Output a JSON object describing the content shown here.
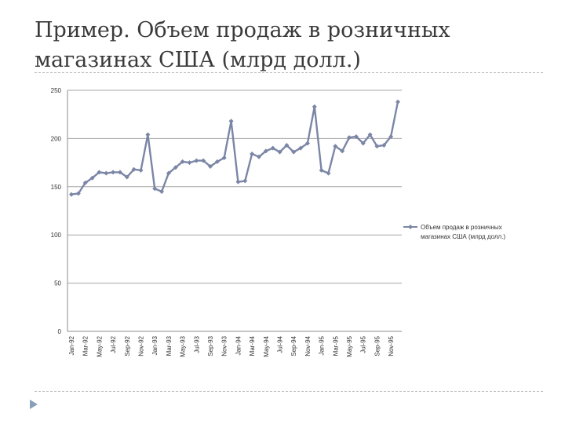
{
  "slide": {
    "title": "Пример. Объем продаж в розничных магазинах США (млрд долл.)"
  },
  "colors": {
    "series": "#7b86a6",
    "grid": "#a6a6a6",
    "axis": "#8c8c8c",
    "text": "#333333",
    "bullet": "#8aa0b8"
  },
  "icons": {
    "bullet": "triangle-bullet-icon"
  },
  "chart_data": {
    "type": "line",
    "x": [
      "Jan-92",
      "Feb-92",
      "Mar-92",
      "Apr-92",
      "May-92",
      "Jun-92",
      "Jul-92",
      "Aug-92",
      "Sep-92",
      "Oct-92",
      "Nov-92",
      "Dec-92",
      "Jan-93",
      "Feb-93",
      "Mar-93",
      "Apr-93",
      "May-93",
      "Jun-93",
      "Jul-93",
      "Aug-93",
      "Sep-93",
      "Oct-93",
      "Nov-93",
      "Dec-93",
      "Jan-94",
      "Feb-94",
      "Mar-94",
      "Apr-94",
      "May-94",
      "Jun-94",
      "Jul-94",
      "Aug-94",
      "Sep-94",
      "Oct-94",
      "Nov-94",
      "Dec-94",
      "Jan-95",
      "Feb-95",
      "Mar-95",
      "Apr-95",
      "May-95",
      "Jun-95",
      "Jul-95",
      "Aug-95",
      "Sep-95",
      "Oct-95",
      "Nov-95",
      "Dec-95"
    ],
    "x_tick_labels": [
      "Jan-92",
      "Mar-92",
      "May-92",
      "Jul-92",
      "Sep-92",
      "Nov-92",
      "Jan-93",
      "Mar-93",
      "May-93",
      "Jul-93",
      "Sep-93",
      "Nov-93",
      "Jan-94",
      "Mar-94",
      "May-94",
      "Jul-94",
      "Sep-94",
      "Nov-94",
      "Jan-95",
      "Mar-95",
      "May-95",
      "Jul-95",
      "Sep-95",
      "Nov-95"
    ],
    "series": [
      {
        "name": "Объем продаж в розничных магазинах США (млрд долл.)",
        "values": [
          142,
          143,
          154,
          159,
          165,
          164,
          165,
          165,
          160,
          168,
          167,
          204,
          148,
          145,
          164,
          170,
          176,
          175,
          177,
          177,
          171,
          176,
          180,
          218,
          155,
          156,
          184,
          181,
          187,
          190,
          186,
          193,
          186,
          190,
          195,
          233,
          167,
          164,
          192,
          187,
          201,
          202,
          195,
          204,
          192,
          193,
          202,
          238
        ]
      }
    ],
    "ylim": [
      0,
      250
    ],
    "y_ticks": [
      0,
      50,
      100,
      150,
      200,
      250
    ],
    "grid": true,
    "legend_position": "right",
    "legend_label_lines": [
      "Объем продаж в розничных",
      "магазинах США (млрд долл.)"
    ],
    "title": "",
    "xlabel": "",
    "ylabel": ""
  }
}
